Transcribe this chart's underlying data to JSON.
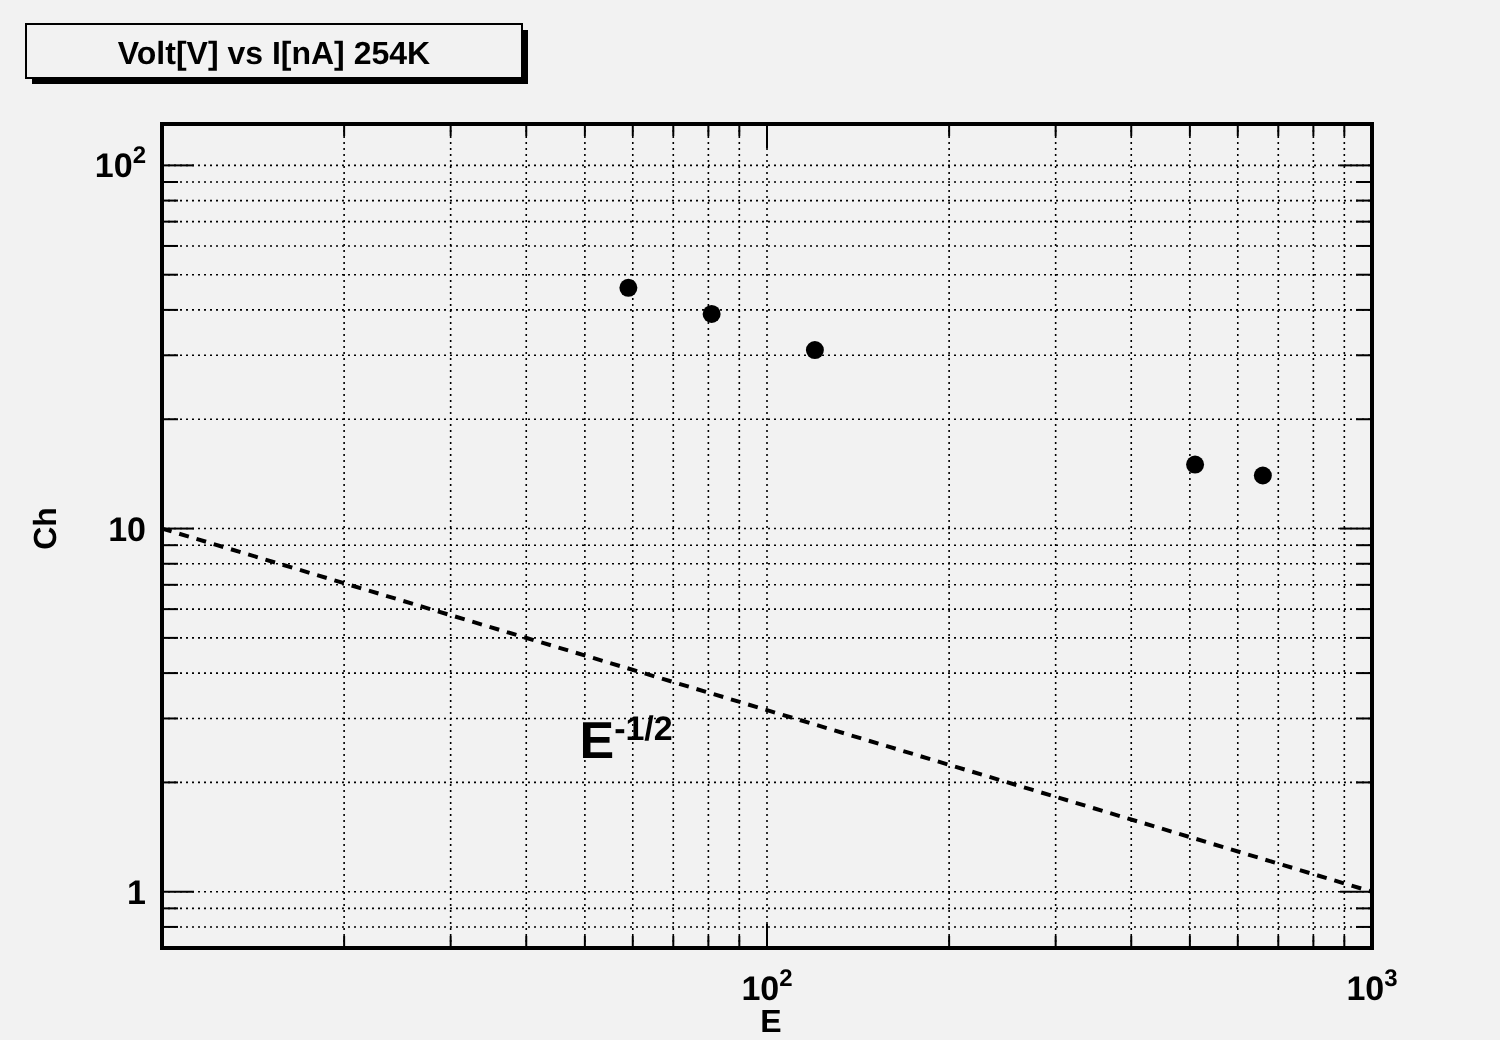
{
  "chart_data": {
    "type": "scatter",
    "title": "Volt[V] vs I[nA] 254K",
    "xlabel": "E",
    "ylabel": "Ch",
    "log": "xy",
    "grid": true,
    "xlim": [
      10,
      1000
    ],
    "ylim": [
      0.7,
      130
    ],
    "xticks": [
      {
        "value": 20,
        "label": null
      },
      {
        "value": 30,
        "label": null
      },
      {
        "value": 40,
        "label": null
      },
      {
        "value": 50,
        "label": null
      },
      {
        "value": 60,
        "label": null
      },
      {
        "value": 70,
        "label": null
      },
      {
        "value": 80,
        "label": null
      },
      {
        "value": 90,
        "label": null
      },
      {
        "value": 100,
        "label": "10$^{2}$"
      },
      {
        "value": 200,
        "label": null
      },
      {
        "value": 300,
        "label": null
      },
      {
        "value": 400,
        "label": null
      },
      {
        "value": 500,
        "label": null
      },
      {
        "value": 600,
        "label": null
      },
      {
        "value": 700,
        "label": null
      },
      {
        "value": 800,
        "label": null
      },
      {
        "value": 900,
        "label": null
      },
      {
        "value": 1000,
        "label": "10$^{3}$"
      }
    ],
    "yticks": [
      {
        "value": 0.8,
        "label": null
      },
      {
        "value": 0.9,
        "label": null
      },
      1,
      {
        "value": 2,
        "label": null
      },
      {
        "value": 3,
        "label": null
      },
      {
        "value": 4,
        "label": null
      },
      {
        "value": 5,
        "label": null
      },
      {
        "value": 6,
        "label": null
      },
      {
        "value": 7,
        "label": null
      },
      {
        "value": 8,
        "label": null
      },
      {
        "value": 9,
        "label": null
      },
      10,
      {
        "value": 20,
        "label": null
      },
      {
        "value": 30,
        "label": null
      },
      {
        "value": 40,
        "label": null
      },
      {
        "value": 50,
        "label": null
      },
      {
        "value": 60,
        "label": null
      },
      {
        "value": 70,
        "label": null
      },
      {
        "value": 80,
        "label": null
      },
      {
        "value": 90,
        "label": null
      },
      {
        "value": 100,
        "label": "10$^{2}$"
      }
    ],
    "series": [
      {
        "color": "#000000",
        "marker": "circle",
        "x": [
          59,
          81,
          120,
          510,
          660
        ],
        "values": [
          46,
          39,
          31,
          15,
          14
        ]
      },
      {
        "type": "line",
        "color": "#000000",
        "marker": "none",
        "line_style": "dashed",
        "x": [
          10,
          1000
        ],
        "values": [
          10,
          1
        ]
      }
    ],
    "annotations": [
      "E$^{-1/2}$"
    ]
  }
}
